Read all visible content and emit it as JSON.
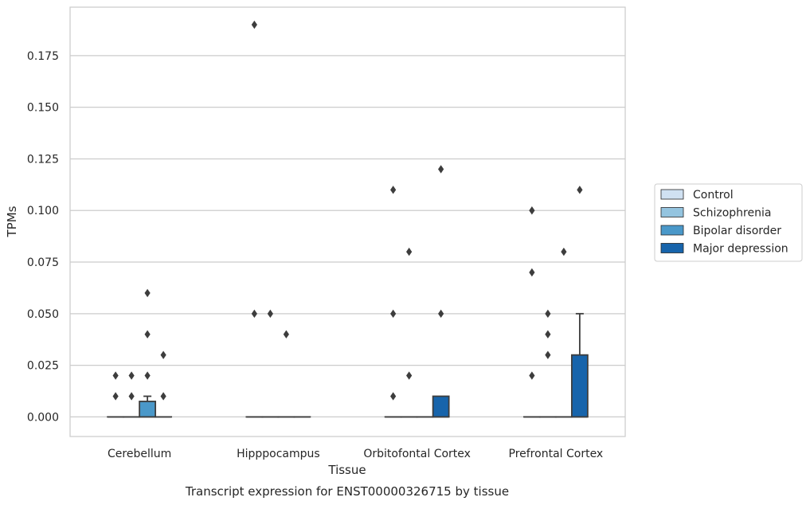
{
  "caption": "Transcript expression for ENST00000326715 by tissue",
  "chart_data": {
    "type": "box",
    "xlabel": "Tissue",
    "ylabel": "TPMs",
    "ylim": [
      -0.0095,
      0.1985
    ],
    "yticks": [
      0.0,
      0.025,
      0.05,
      0.075,
      0.1,
      0.125,
      0.15,
      0.175
    ],
    "ytick_labels": [
      "0.000",
      "0.025",
      "0.050",
      "0.075",
      "0.100",
      "0.125",
      "0.150",
      "0.175"
    ],
    "grid": "horizontal",
    "legend_position": "right",
    "categories": [
      "Cerebellum",
      "Hipppocampus",
      "Orbitofontal Cortex",
      "Prefrontal Cortex"
    ],
    "series": [
      {
        "name": "Control",
        "color": "#d0e1f2",
        "boxes": [
          {
            "q1": 0,
            "median": 0,
            "q3": 0,
            "whislo": 0,
            "whishi": 0,
            "fliers": [
              0.01,
              0.02
            ]
          },
          {
            "q1": 0,
            "median": 0,
            "q3": 0,
            "whislo": 0,
            "whishi": 0,
            "fliers": [
              0.05,
              0.19
            ]
          },
          {
            "q1": 0,
            "median": 0,
            "q3": 0,
            "whislo": 0,
            "whishi": 0,
            "fliers": [
              0.01,
              0.05,
              0.11
            ]
          },
          {
            "q1": 0,
            "median": 0,
            "q3": 0,
            "whislo": 0,
            "whishi": 0,
            "fliers": [
              0.02,
              0.07,
              0.1
            ]
          }
        ]
      },
      {
        "name": "Schizophrenia",
        "color": "#94c4df",
        "boxes": [
          {
            "q1": 0,
            "median": 0,
            "q3": 0,
            "whislo": 0,
            "whishi": 0,
            "fliers": [
              0.01,
              0.02
            ]
          },
          {
            "q1": 0,
            "median": 0,
            "q3": 0,
            "whislo": 0,
            "whishi": 0,
            "fliers": [
              0.05
            ]
          },
          {
            "q1": 0,
            "median": 0,
            "q3": 0,
            "whislo": 0,
            "whishi": 0,
            "fliers": [
              0.02,
              0.08
            ]
          },
          {
            "q1": 0,
            "median": 0,
            "q3": 0,
            "whislo": 0,
            "whishi": 0,
            "fliers": [
              0.03,
              0.04,
              0.05
            ]
          }
        ]
      },
      {
        "name": "Bipolar disorder",
        "color": "#4a98c9",
        "boxes": [
          {
            "q1": 0,
            "median": 0,
            "q3": 0.0075,
            "whislo": 0,
            "whishi": 0.01,
            "fliers": [
              0.02,
              0.04,
              0.06
            ]
          },
          {
            "q1": 0,
            "median": 0,
            "q3": 0,
            "whislo": 0,
            "whishi": 0,
            "fliers": [
              0.04
            ]
          },
          {
            "q1": 0,
            "median": 0,
            "q3": 0,
            "whislo": 0,
            "whishi": 0,
            "fliers": []
          },
          {
            "q1": 0,
            "median": 0,
            "q3": 0,
            "whislo": 0,
            "whishi": 0,
            "fliers": [
              0.08
            ]
          }
        ]
      },
      {
        "name": "Major depression",
        "color": "#1764ab",
        "boxes": [
          {
            "q1": 0,
            "median": 0,
            "q3": 0,
            "whislo": 0,
            "whishi": 0,
            "fliers": [
              0.01,
              0.03
            ]
          },
          {
            "q1": 0,
            "median": 0,
            "q3": 0,
            "whislo": 0,
            "whishi": 0,
            "fliers": []
          },
          {
            "q1": 0,
            "median": 0,
            "q3": 0.01,
            "whislo": 0,
            "whishi": 0.01,
            "fliers": [
              0.05,
              0.12
            ]
          },
          {
            "q1": 0,
            "median": 0,
            "q3": 0.03,
            "whislo": 0,
            "whishi": 0.05,
            "fliers": [
              0.11
            ]
          }
        ]
      }
    ]
  }
}
